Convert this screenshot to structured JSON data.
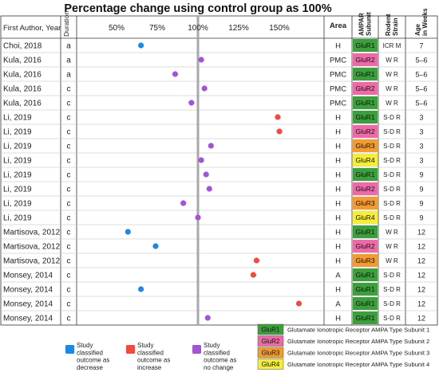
{
  "chart_data": {
    "type": "scatter",
    "title": "Percentage change using control group as 100%",
    "columns": {
      "author": "First Author, Year",
      "duration": "Duration",
      "area": "Area",
      "subunit": "AMPAR Subunit",
      "strain": "Rodent Strain",
      "age": "Age in Weeks"
    },
    "xticks": [
      {
        "label": "50%",
        "value": 50
      },
      {
        "label": "75%",
        "value": 75
      },
      {
        "label": "100%",
        "value": 100
      },
      {
        "label": "125%",
        "value": 125
      },
      {
        "label": "150%",
        "value": 150
      }
    ],
    "xlim": [
      25,
      175
    ],
    "reference_line": 100,
    "outcome_colors": {
      "decrease": "#1e88e5",
      "increase": "#ef4b3f",
      "no_change": "#a352d9"
    },
    "subunit_colors": {
      "GluR1": "#3c9e3c",
      "GluR2": "#ec6aa6",
      "GluR3": "#f39a30",
      "GluR4": "#f4ee3a"
    },
    "rows": [
      {
        "author": "Choi, 2018",
        "duration": "a",
        "value": 65,
        "outcome": "decrease",
        "area": "H",
        "subunit": "GluR1",
        "strain": "ICR M",
        "age": "7"
      },
      {
        "author": "Kula, 2016",
        "duration": "a",
        "value": 102,
        "outcome": "no_change",
        "area": "PMC",
        "subunit": "GluR2",
        "strain": "W R",
        "age": "5–6"
      },
      {
        "author": "Kula, 2016",
        "duration": "a",
        "value": 86,
        "outcome": "no_change",
        "area": "PMC",
        "subunit": "GluR1",
        "strain": "W R",
        "age": "5–6"
      },
      {
        "author": "Kula, 2016",
        "duration": "c",
        "value": 104,
        "outcome": "no_change",
        "area": "PMC",
        "subunit": "GluR2",
        "strain": "W R",
        "age": "5–6"
      },
      {
        "author": "Kula, 2016",
        "duration": "c",
        "value": 96,
        "outcome": "no_change",
        "area": "PMC",
        "subunit": "GluR1",
        "strain": "W R",
        "age": "5–6"
      },
      {
        "author": "Li, 2019",
        "duration": "c",
        "value": 149,
        "outcome": "increase",
        "area": "H",
        "subunit": "GluR1",
        "strain": "S-D R",
        "age": "3"
      },
      {
        "author": "Li, 2019",
        "duration": "c",
        "value": 150,
        "outcome": "increase",
        "area": "H",
        "subunit": "GluR2",
        "strain": "S-D R",
        "age": "3"
      },
      {
        "author": "Li, 2019",
        "duration": "c",
        "value": 108,
        "outcome": "no_change",
        "area": "H",
        "subunit": "GluR3",
        "strain": "S-D R",
        "age": "3"
      },
      {
        "author": "Li, 2019",
        "duration": "c",
        "value": 102,
        "outcome": "no_change",
        "area": "H",
        "subunit": "GluR4",
        "strain": "S-D R",
        "age": "3"
      },
      {
        "author": "Li, 2019",
        "duration": "c",
        "value": 105,
        "outcome": "no_change",
        "area": "H",
        "subunit": "GluR1",
        "strain": "S-D R",
        "age": "9"
      },
      {
        "author": "Li, 2019",
        "duration": "c",
        "value": 107,
        "outcome": "no_change",
        "area": "H",
        "subunit": "GluR2",
        "strain": "S-D R",
        "age": "9"
      },
      {
        "author": "Li, 2019",
        "duration": "c",
        "value": 91,
        "outcome": "no_change",
        "area": "H",
        "subunit": "GluR3",
        "strain": "S-D R",
        "age": "9"
      },
      {
        "author": "Li, 2019",
        "duration": "c",
        "value": 100,
        "outcome": "no_change",
        "area": "H",
        "subunit": "GluR4",
        "strain": "S-D R",
        "age": "9"
      },
      {
        "author": "Martisova, 2012",
        "duration": "c",
        "value": 57,
        "outcome": "decrease",
        "area": "H",
        "subunit": "GluR1",
        "strain": "W R",
        "age": "12"
      },
      {
        "author": "Martisova, 2012",
        "duration": "c",
        "value": 74,
        "outcome": "decrease",
        "area": "H",
        "subunit": "GluR2",
        "strain": "W R",
        "age": "12"
      },
      {
        "author": "Martisova, 2012",
        "duration": "c",
        "value": 136,
        "outcome": "increase",
        "area": "H",
        "subunit": "GluR3",
        "strain": "W R",
        "age": "12"
      },
      {
        "author": "Monsey, 2014",
        "duration": "c",
        "value": 134,
        "outcome": "increase",
        "area": "A",
        "subunit": "GluR1",
        "strain": "S-D R",
        "age": "12"
      },
      {
        "author": "Monsey, 2014",
        "duration": "c",
        "value": 65,
        "outcome": "decrease",
        "area": "H",
        "subunit": "GluR1",
        "strain": "S-D R",
        "age": "12"
      },
      {
        "author": "Monsey, 2014",
        "duration": "c",
        "value": 162,
        "outcome": "increase",
        "area": "A",
        "subunit": "GluR1",
        "strain": "S-D R",
        "age": "12"
      },
      {
        "author": "Monsey, 2014",
        "duration": "c",
        "value": 106,
        "outcome": "no_change",
        "area": "H",
        "subunit": "GluR1",
        "strain": "S-D R",
        "age": "12"
      }
    ],
    "outcome_legend": [
      {
        "key": "decrease",
        "label": [
          "Study",
          "classified",
          "outcome as",
          "decrease"
        ]
      },
      {
        "key": "increase",
        "label": [
          "Study",
          "classified",
          "outcome as",
          "increase"
        ]
      },
      {
        "key": "no_change",
        "label": [
          "Study",
          "classified",
          "outcome as",
          "no change"
        ]
      }
    ],
    "subunit_legend": [
      {
        "key": "GluR1",
        "label": "Glutamate Ionotropic Receptor AMPA Type Subunit 1"
      },
      {
        "key": "GluR2",
        "label": "Glutamate Ionotropic Receptor AMPA Type Subunit 2"
      },
      {
        "key": "GluR3",
        "label": "Glutamate Ionotropic Receptor AMPA Type Subunit 3"
      },
      {
        "key": "GluR4",
        "label": "Glutamate Ionotropic Receptor AMPA Type Subunit 4"
      }
    ]
  }
}
